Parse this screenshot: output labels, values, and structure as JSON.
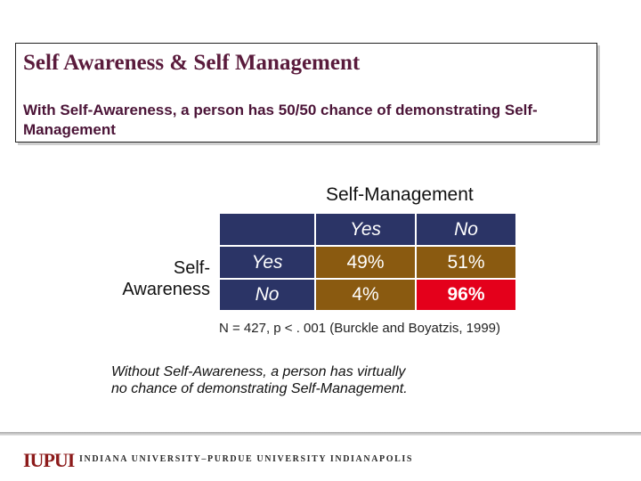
{
  "slide": {
    "title": "Self Awareness & Self Management",
    "subtitle": "With Self-Awareness, a person has  50/50 chance of demonstrating Self-Management"
  },
  "table": {
    "column_group": "Self-Management",
    "row_group_line1": "Self-",
    "row_group_line2": "Awareness",
    "column_headers": [
      "Yes",
      "No"
    ],
    "rows": [
      {
        "label": "Yes",
        "values": [
          "49%",
          "51%"
        ]
      },
      {
        "label": "No",
        "values": [
          "4%",
          "96%"
        ]
      }
    ],
    "colors": {
      "header": "#2b3466",
      "cell": "#8a5a10",
      "highlight": "#e4001b"
    }
  },
  "footnote": "N = 427, p < . 001  (Burckle and Boyatzis, 1999)",
  "conclusion": "Without Self-Awareness, a person has virtually no chance of demonstrating Self-Management.",
  "footer": {
    "logo": "IUPUI",
    "university": "INDIANA UNIVERSITY–PURDUE UNIVERSITY INDIANAPOLIS"
  }
}
